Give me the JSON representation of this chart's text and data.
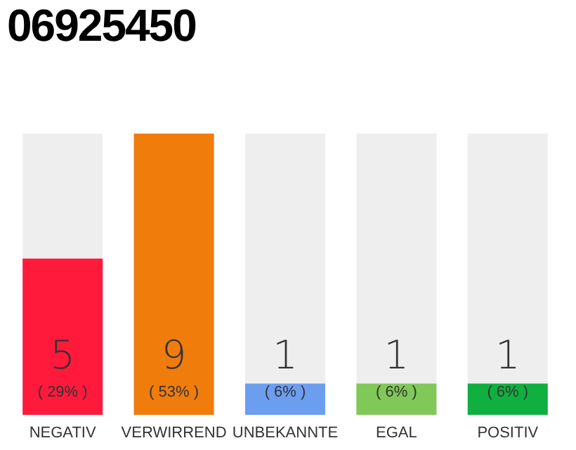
{
  "chart_data": {
    "type": "bar",
    "title": "06925450",
    "categories": [
      "NEGATIV",
      "VERWIRREND",
      "UNBEKANNTE",
      "EGAL",
      "POSITIV"
    ],
    "values": [
      5,
      9,
      1,
      1,
      1
    ],
    "colors": [
      "#ff1a3c",
      "#f07c0c",
      "#6c9ef0",
      "#80c858",
      "#10b040"
    ],
    "value_labels": [
      "5 ( 29% )",
      "9 ( 53% )",
      "1 ( 6% )",
      "1 ( 6% )",
      "1 ( 6% )"
    ]
  }
}
